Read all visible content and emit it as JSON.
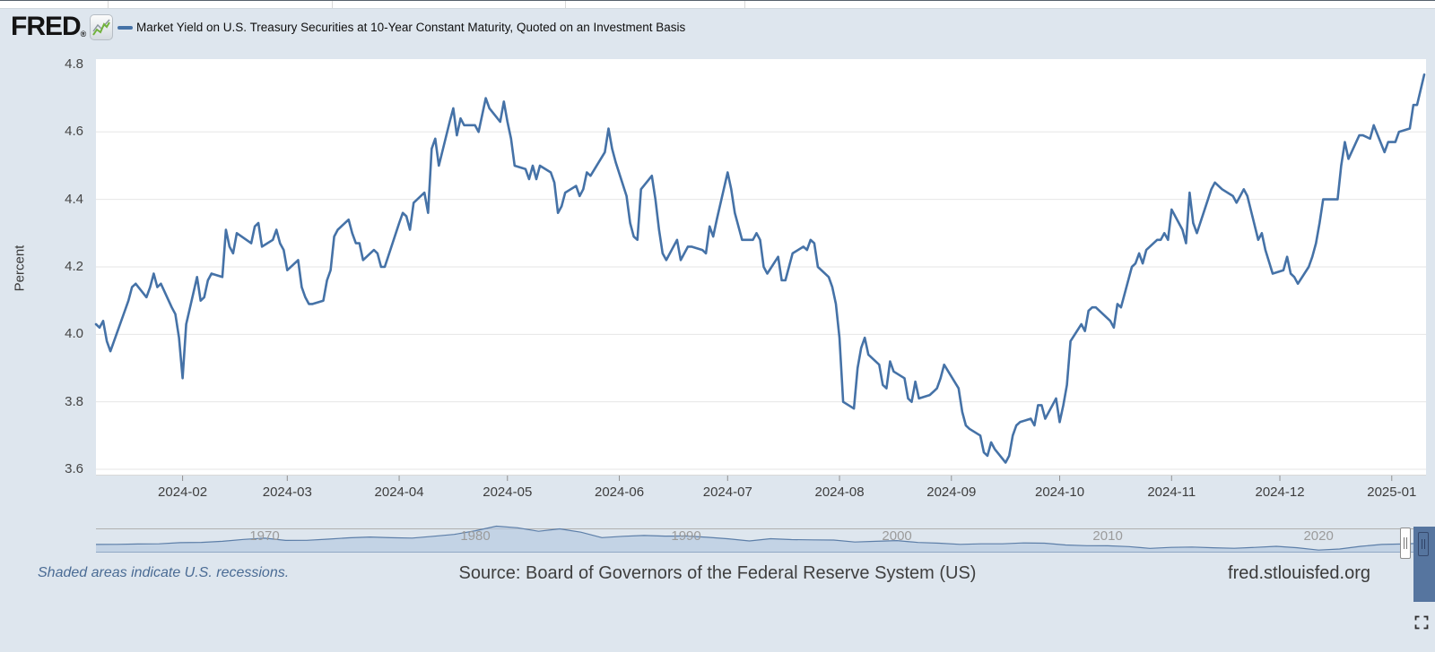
{
  "header": {
    "logo_text": "FRED",
    "logo_registered": "®",
    "legend_label": "Market Yield on U.S. Treasury Securities at 10-Year Constant Maturity, Quoted on an Investment Basis"
  },
  "footer": {
    "recession_note": "Shaded areas indicate U.S. recessions.",
    "source": "Source: Board of Governors of the Federal Reserve System (US)",
    "site": "fred.stlouisfed.org"
  },
  "colors": {
    "accent_line": "#4572a7",
    "background": "#dee6ee",
    "plot_background": "#ffffff",
    "gridline": "#e6e6e6",
    "navigator_fill": "#b3c6df",
    "navigator_line": "#5c7ea8",
    "selection_overlay": "#56759f"
  },
  "chart_data": [
    {
      "type": "line",
      "title": "Market Yield on U.S. Treasury Securities at 10-Year Constant Maturity, Quoted on an Investment Basis",
      "xlabel": "",
      "ylabel": "Percent",
      "ylim": [
        3.6,
        4.8
      ],
      "y_ticks": [
        4.8,
        4.6,
        4.4,
        4.2,
        4.0,
        3.8,
        3.6
      ],
      "x_ticks": [
        "2024-02",
        "2024-03",
        "2024-04",
        "2024-05",
        "2024-06",
        "2024-07",
        "2024-08",
        "2024-09",
        "2024-10",
        "2024-11",
        "2024-12",
        "2025-01"
      ],
      "x_range": [
        "2024-01-08",
        "2025-01-10"
      ],
      "grid": true,
      "legend_position": "top",
      "line_color": "#4572a7",
      "dates": [
        "2024-01-08",
        "2024-01-09",
        "2024-01-10",
        "2024-01-11",
        "2024-01-12",
        "2024-01-16",
        "2024-01-17",
        "2024-01-18",
        "2024-01-19",
        "2024-01-22",
        "2024-01-23",
        "2024-01-24",
        "2024-01-25",
        "2024-01-26",
        "2024-01-29",
        "2024-01-30",
        "2024-01-31",
        "2024-02-01",
        "2024-02-02",
        "2024-02-05",
        "2024-02-06",
        "2024-02-07",
        "2024-02-08",
        "2024-02-09",
        "2024-02-12",
        "2024-02-13",
        "2024-02-14",
        "2024-02-15",
        "2024-02-16",
        "2024-02-20",
        "2024-02-21",
        "2024-02-22",
        "2024-02-23",
        "2024-02-26",
        "2024-02-27",
        "2024-02-28",
        "2024-02-29",
        "2024-03-01",
        "2024-03-04",
        "2024-03-05",
        "2024-03-06",
        "2024-03-07",
        "2024-03-08",
        "2024-03-11",
        "2024-03-12",
        "2024-03-13",
        "2024-03-14",
        "2024-03-15",
        "2024-03-18",
        "2024-03-19",
        "2024-03-20",
        "2024-03-21",
        "2024-03-22",
        "2024-03-25",
        "2024-03-26",
        "2024-03-27",
        "2024-03-28",
        "2024-04-01",
        "2024-04-02",
        "2024-04-03",
        "2024-04-04",
        "2024-04-05",
        "2024-04-08",
        "2024-04-09",
        "2024-04-10",
        "2024-04-11",
        "2024-04-12",
        "2024-04-15",
        "2024-04-16",
        "2024-04-17",
        "2024-04-18",
        "2024-04-19",
        "2024-04-22",
        "2024-04-23",
        "2024-04-24",
        "2024-04-25",
        "2024-04-26",
        "2024-04-29",
        "2024-04-30",
        "2024-05-01",
        "2024-05-02",
        "2024-05-03",
        "2024-05-06",
        "2024-05-07",
        "2024-05-08",
        "2024-05-09",
        "2024-05-10",
        "2024-05-13",
        "2024-05-14",
        "2024-05-15",
        "2024-05-16",
        "2024-05-17",
        "2024-05-20",
        "2024-05-21",
        "2024-05-22",
        "2024-05-23",
        "2024-05-24",
        "2024-05-28",
        "2024-05-29",
        "2024-05-30",
        "2024-05-31",
        "2024-06-03",
        "2024-06-04",
        "2024-06-05",
        "2024-06-06",
        "2024-06-07",
        "2024-06-10",
        "2024-06-11",
        "2024-06-12",
        "2024-06-13",
        "2024-06-14",
        "2024-06-17",
        "2024-06-18",
        "2024-06-20",
        "2024-06-21",
        "2024-06-24",
        "2024-06-25",
        "2024-06-26",
        "2024-06-27",
        "2024-06-28",
        "2024-07-01",
        "2024-07-02",
        "2024-07-03",
        "2024-07-05",
        "2024-07-08",
        "2024-07-09",
        "2024-07-10",
        "2024-07-11",
        "2024-07-12",
        "2024-07-15",
        "2024-07-16",
        "2024-07-17",
        "2024-07-18",
        "2024-07-19",
        "2024-07-22",
        "2024-07-23",
        "2024-07-24",
        "2024-07-25",
        "2024-07-26",
        "2024-07-29",
        "2024-07-30",
        "2024-07-31",
        "2024-08-01",
        "2024-08-02",
        "2024-08-05",
        "2024-08-06",
        "2024-08-07",
        "2024-08-08",
        "2024-08-09",
        "2024-08-12",
        "2024-08-13",
        "2024-08-14",
        "2024-08-15",
        "2024-08-16",
        "2024-08-19",
        "2024-08-20",
        "2024-08-21",
        "2024-08-22",
        "2024-08-23",
        "2024-08-26",
        "2024-08-27",
        "2024-08-28",
        "2024-08-29",
        "2024-08-30",
        "2024-09-03",
        "2024-09-04",
        "2024-09-05",
        "2024-09-06",
        "2024-09-09",
        "2024-09-10",
        "2024-09-11",
        "2024-09-12",
        "2024-09-13",
        "2024-09-16",
        "2024-09-17",
        "2024-09-18",
        "2024-09-19",
        "2024-09-20",
        "2024-09-23",
        "2024-09-24",
        "2024-09-25",
        "2024-09-26",
        "2024-09-27",
        "2024-09-30",
        "2024-10-01",
        "2024-10-02",
        "2024-10-03",
        "2024-10-04",
        "2024-10-07",
        "2024-10-08",
        "2024-10-09",
        "2024-10-10",
        "2024-10-11",
        "2024-10-15",
        "2024-10-16",
        "2024-10-17",
        "2024-10-18",
        "2024-10-21",
        "2024-10-22",
        "2024-10-23",
        "2024-10-24",
        "2024-10-25",
        "2024-10-28",
        "2024-10-29",
        "2024-10-30",
        "2024-10-31",
        "2024-11-01",
        "2024-11-04",
        "2024-11-05",
        "2024-11-06",
        "2024-11-07",
        "2024-11-08",
        "2024-11-12",
        "2024-11-13",
        "2024-11-14",
        "2024-11-15",
        "2024-11-18",
        "2024-11-19",
        "2024-11-20",
        "2024-11-21",
        "2024-11-22",
        "2024-11-25",
        "2024-11-26",
        "2024-11-27",
        "2024-11-29",
        "2024-12-02",
        "2024-12-03",
        "2024-12-04",
        "2024-12-05",
        "2024-12-06",
        "2024-12-09",
        "2024-12-10",
        "2024-12-11",
        "2024-12-12",
        "2024-12-13",
        "2024-12-16",
        "2024-12-17",
        "2024-12-18",
        "2024-12-19",
        "2024-12-20",
        "2024-12-23",
        "2024-12-24",
        "2024-12-26",
        "2024-12-27",
        "2024-12-30",
        "2024-12-31",
        "2025-01-02",
        "2025-01-03",
        "2025-01-06",
        "2025-01-07",
        "2025-01-08",
        "2025-01-10"
      ],
      "values": [
        4.03,
        4.02,
        4.04,
        3.98,
        3.95,
        4.07,
        4.1,
        4.14,
        4.15,
        4.11,
        4.14,
        4.18,
        4.14,
        4.15,
        4.08,
        4.06,
        3.99,
        3.87,
        4.03,
        4.17,
        4.1,
        4.11,
        4.16,
        4.18,
        4.17,
        4.31,
        4.26,
        4.24,
        4.3,
        4.27,
        4.32,
        4.33,
        4.26,
        4.28,
        4.31,
        4.27,
        4.25,
        4.19,
        4.22,
        4.14,
        4.11,
        4.09,
        4.09,
        4.1,
        4.16,
        4.19,
        4.29,
        4.31,
        4.34,
        4.3,
        4.27,
        4.27,
        4.22,
        4.25,
        4.24,
        4.2,
        4.2,
        4.33,
        4.36,
        4.35,
        4.31,
        4.39,
        4.42,
        4.36,
        4.55,
        4.58,
        4.5,
        4.63,
        4.67,
        4.59,
        4.64,
        4.62,
        4.62,
        4.6,
        4.65,
        4.7,
        4.67,
        4.63,
        4.69,
        4.63,
        4.58,
        4.5,
        4.49,
        4.46,
        4.5,
        4.46,
        4.5,
        4.48,
        4.45,
        4.36,
        4.38,
        4.42,
        4.44,
        4.41,
        4.43,
        4.48,
        4.47,
        4.54,
        4.61,
        4.55,
        4.51,
        4.41,
        4.33,
        4.29,
        4.28,
        4.43,
        4.47,
        4.4,
        4.31,
        4.24,
        4.22,
        4.28,
        4.22,
        4.26,
        4.26,
        4.25,
        4.24,
        4.32,
        4.29,
        4.34,
        4.48,
        4.43,
        4.36,
        4.28,
        4.28,
        4.3,
        4.28,
        4.2,
        4.18,
        4.23,
        4.16,
        4.16,
        4.2,
        4.24,
        4.26,
        4.25,
        4.28,
        4.27,
        4.2,
        4.17,
        4.14,
        4.09,
        3.99,
        3.8,
        3.78,
        3.9,
        3.96,
        3.99,
        3.94,
        3.91,
        3.85,
        3.84,
        3.92,
        3.89,
        3.87,
        3.81,
        3.8,
        3.86,
        3.81,
        3.82,
        3.83,
        3.84,
        3.87,
        3.91,
        3.84,
        3.77,
        3.73,
        3.72,
        3.7,
        3.65,
        3.64,
        3.68,
        3.66,
        3.62,
        3.64,
        3.7,
        3.73,
        3.74,
        3.75,
        3.73,
        3.79,
        3.79,
        3.75,
        3.81,
        3.74,
        3.79,
        3.85,
        3.98,
        4.03,
        4.01,
        4.07,
        4.08,
        4.08,
        4.04,
        4.02,
        4.09,
        4.08,
        4.2,
        4.21,
        4.24,
        4.21,
        4.25,
        4.28,
        4.28,
        4.3,
        4.28,
        4.37,
        4.31,
        4.27,
        4.42,
        4.33,
        4.3,
        4.43,
        4.45,
        4.44,
        4.43,
        4.41,
        4.39,
        4.41,
        4.43,
        4.41,
        4.28,
        4.3,
        4.25,
        4.18,
        4.19,
        4.23,
        4.18,
        4.17,
        4.15,
        4.2,
        4.23,
        4.27,
        4.33,
        4.4,
        4.4,
        4.4,
        4.5,
        4.57,
        4.52,
        4.59,
        4.59,
        4.58,
        4.62,
        4.54,
        4.57,
        4.57,
        4.6,
        4.61,
        4.68,
        4.68,
        4.77
      ]
    },
    {
      "type": "area",
      "role": "range-selector",
      "x_range": [
        1962,
        2025.1
      ],
      "ylim": [
        0,
        16
      ],
      "x_ticks": [
        "1970",
        "1980",
        "1990",
        "2000",
        "2010",
        "2020"
      ],
      "fill_color": "#b3c6df",
      "line_color": "#5c7ea8",
      "years": [
        1962,
        1963,
        1964,
        1965,
        1966,
        1967,
        1968,
        1969,
        1970,
        1971,
        1972,
        1973,
        1974,
        1975,
        1976,
        1977,
        1978,
        1979,
        1980,
        1981,
        1982,
        1983,
        1984,
        1985,
        1986,
        1987,
        1988,
        1989,
        1990,
        1991,
        1992,
        1993,
        1994,
        1995,
        1996,
        1997,
        1998,
        1999,
        2000,
        2001,
        2002,
        2003,
        2004,
        2005,
        2006,
        2007,
        2008,
        2009,
        2010,
        2011,
        2012,
        2013,
        2014,
        2015,
        2016,
        2017,
        2018,
        2019,
        2020,
        2021,
        2022,
        2023,
        2024,
        2025
      ],
      "values": [
        3.95,
        4.0,
        4.19,
        4.28,
        4.93,
        5.07,
        5.64,
        6.67,
        7.35,
        6.16,
        6.21,
        6.85,
        7.56,
        7.99,
        7.61,
        7.42,
        8.41,
        9.43,
        11.43,
        13.92,
        13.01,
        11.1,
        12.46,
        10.62,
        7.67,
        8.39,
        8.85,
        8.49,
        8.55,
        7.86,
        7.01,
        5.87,
        7.09,
        6.57,
        6.44,
        6.35,
        5.26,
        5.65,
        6.03,
        5.02,
        4.61,
        4.01,
        4.27,
        4.29,
        4.8,
        4.63,
        3.66,
        3.26,
        3.22,
        2.78,
        1.8,
        2.35,
        2.54,
        2.14,
        1.84,
        2.33,
        2.91,
        2.14,
        0.89,
        1.45,
        2.95,
        3.96,
        4.21,
        4.65
      ]
    }
  ]
}
